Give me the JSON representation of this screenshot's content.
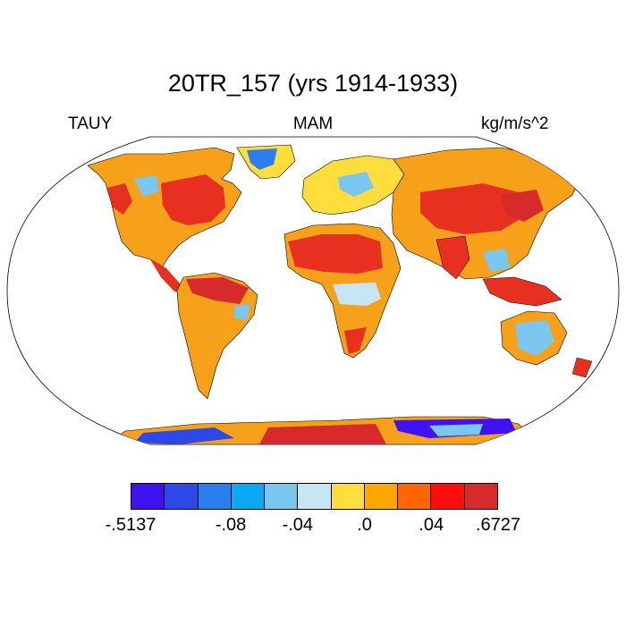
{
  "title": "20TR_157 (yrs 1914-1933)",
  "left_label": "TAUY",
  "center_label": "MAM",
  "right_label": "kg/m/s^2",
  "colorbar": {
    "colors": [
      "#3f12f2",
      "#2c48e6",
      "#2b7ef0",
      "#0aa8f5",
      "#79c7ef",
      "#c6e6f6",
      "#ffdd3c",
      "#ffa700",
      "#ff6500",
      "#ff0d0d",
      "#d72a2a"
    ],
    "labels": [
      {
        "text": ".5137",
        "prefix": "-",
        "boundary": 0
      },
      {
        "text": "-.08",
        "prefix": "",
        "boundary": 3
      },
      {
        "text": "-.04",
        "prefix": "",
        "boundary": 5
      },
      {
        "text": ".0",
        "prefix": "",
        "boundary": 7
      },
      {
        "text": ".04",
        "prefix": "",
        "boundary": 9
      },
      {
        "text": ".6727",
        "prefix": "",
        "boundary": 11
      }
    ]
  }
}
